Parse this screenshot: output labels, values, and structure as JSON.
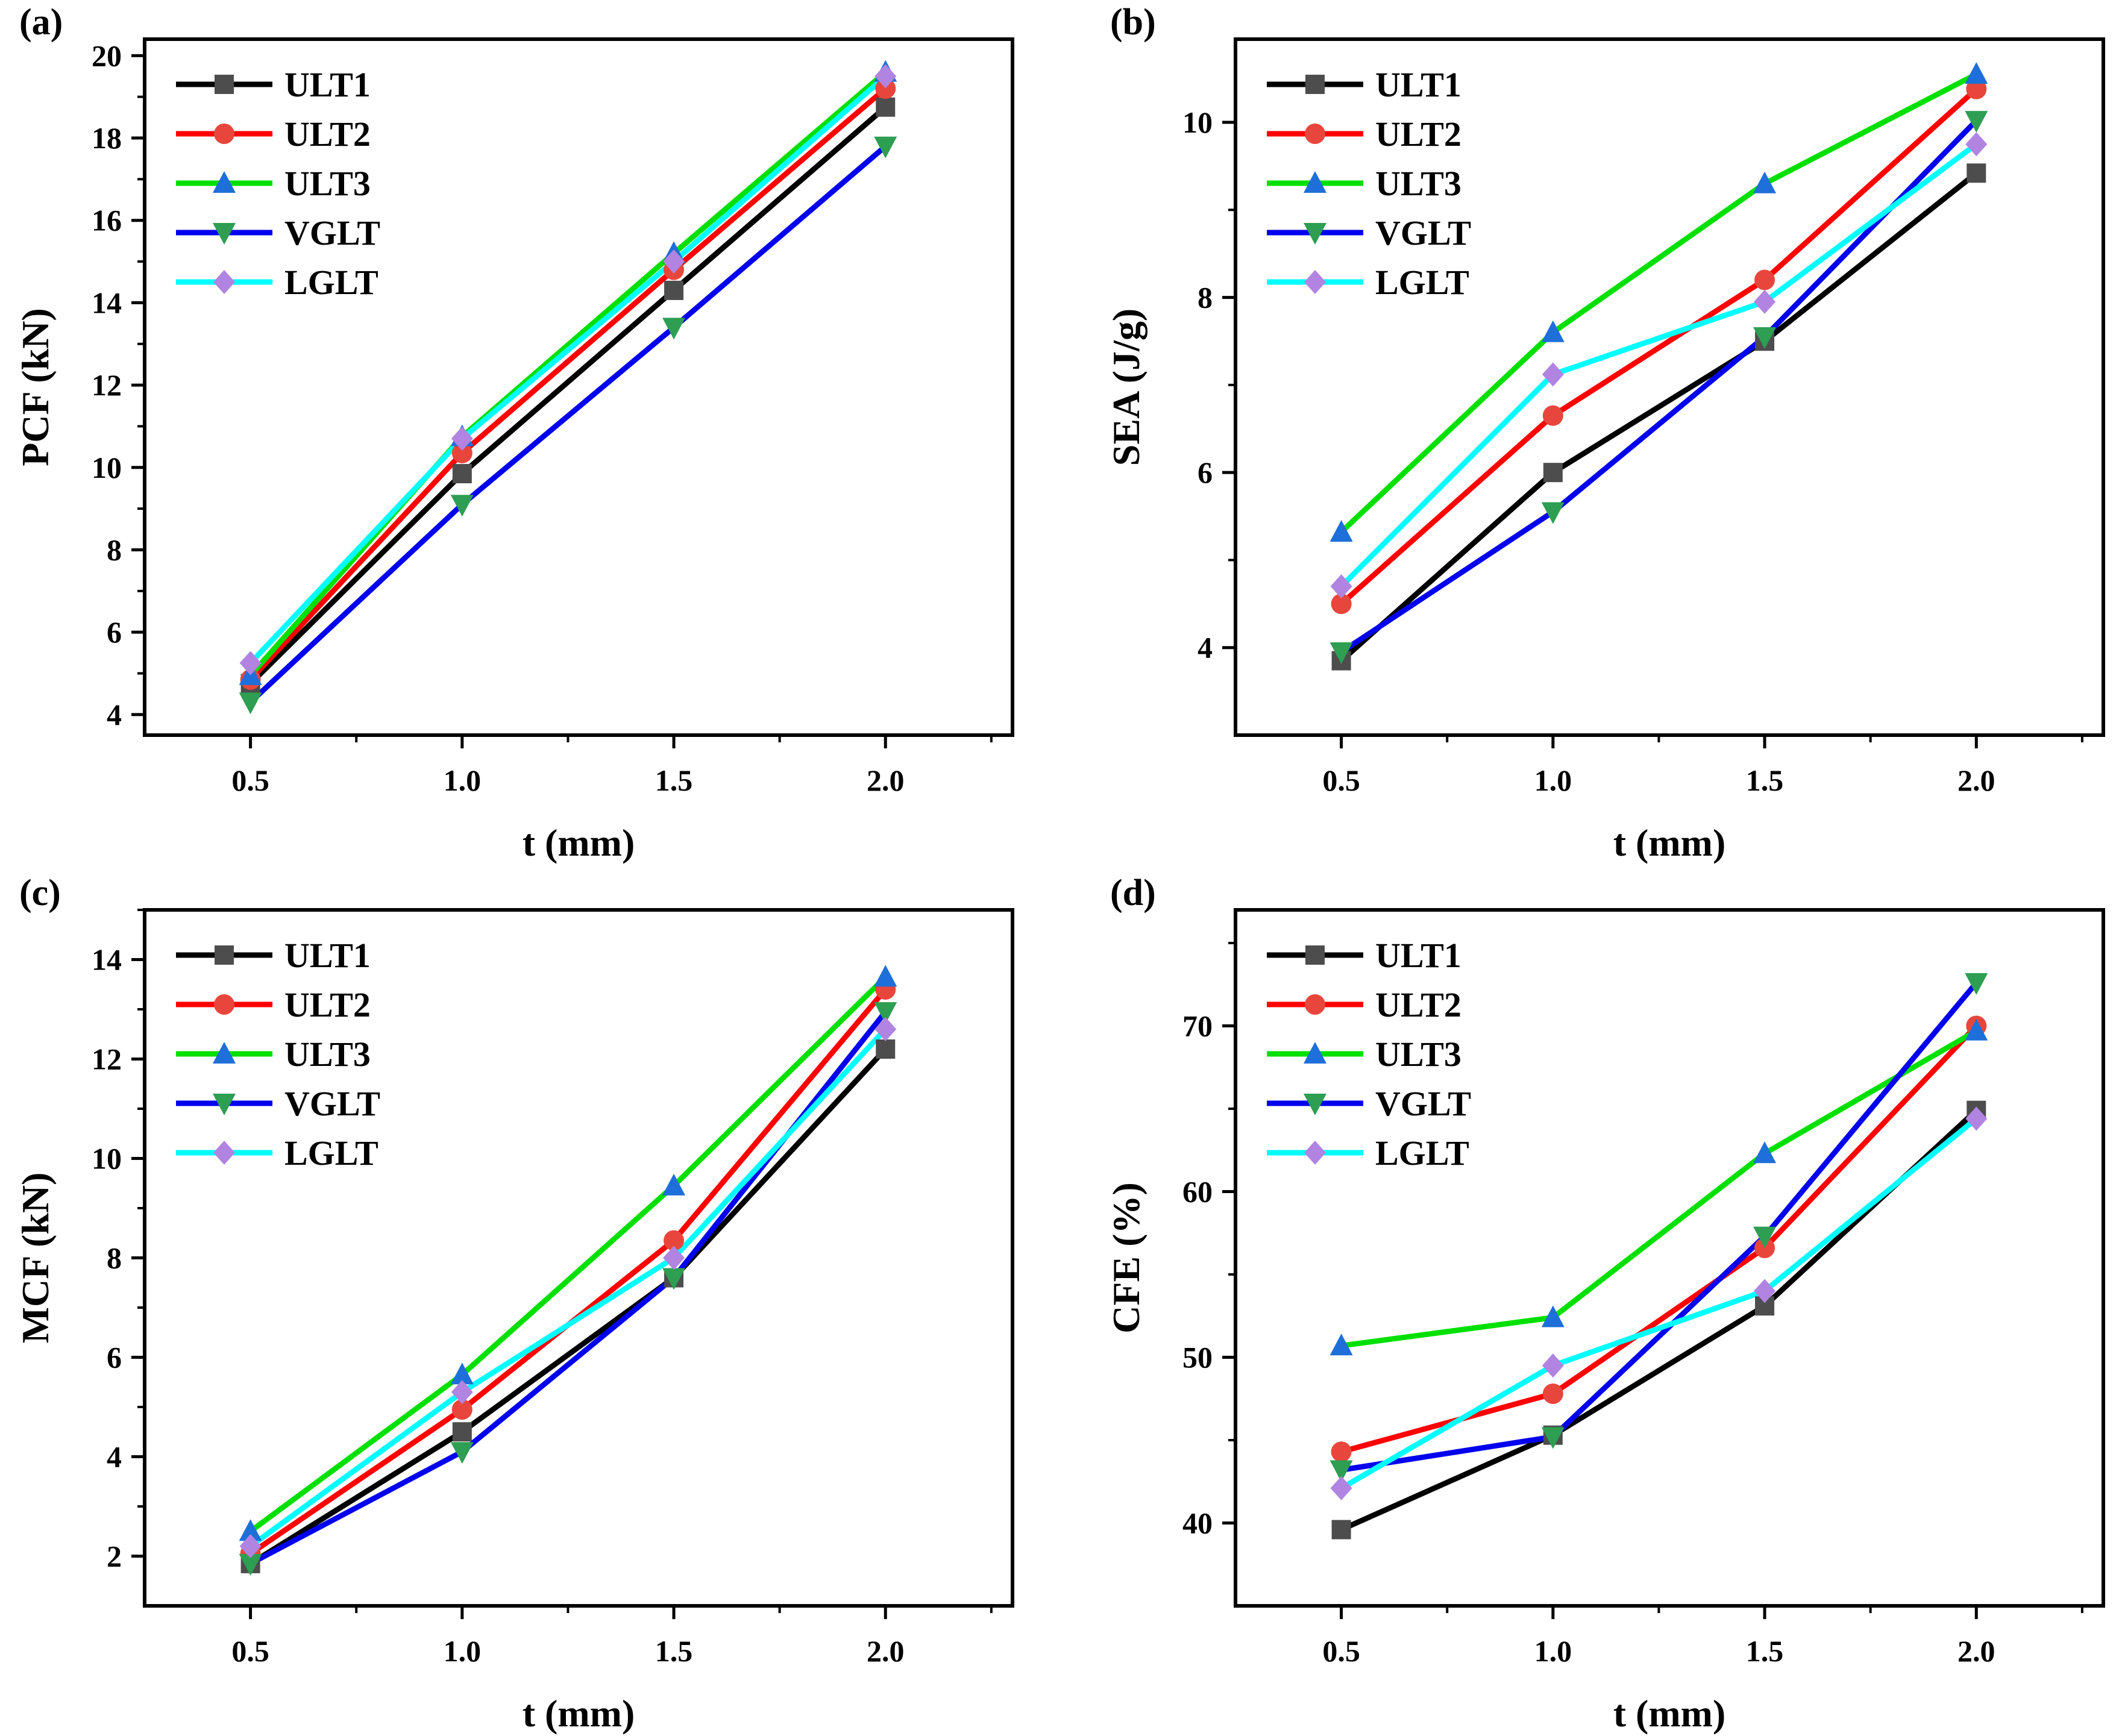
{
  "figure": {
    "series_style": [
      {
        "name": "ULT1",
        "line_color": "#000000",
        "marker_color": "#4d4d4d",
        "marker": "square"
      },
      {
        "name": "ULT2",
        "line_color": "#ff0000",
        "marker_color": "#e8463c",
        "marker": "circle"
      },
      {
        "name": "ULT3",
        "line_color": "#00e000",
        "marker_color": "#1e6fd9",
        "marker": "triangle-up"
      },
      {
        "name": "VGLT",
        "line_color": "#0000ee",
        "marker_color": "#2e9e52",
        "marker": "triangle-down"
      },
      {
        "name": "LGLT",
        "line_color": "#00ffff",
        "marker_color": "#b084e0",
        "marker": "diamond"
      }
    ]
  },
  "chart_data": [
    {
      "panel": "(a)",
      "type": "line",
      "xlabel": "t (mm)",
      "ylabel": "PCF (kN)",
      "x": [
        0.5,
        1.0,
        1.5,
        2.0
      ],
      "xticks": [
        "0.5",
        "1.0",
        "1.5",
        "2.0"
      ],
      "xlim": [
        0.25,
        2.3
      ],
      "yticks": [
        "4",
        "6",
        "8",
        "10",
        "12",
        "14",
        "16",
        "18",
        "20"
      ],
      "ylim": [
        3.5,
        20.4
      ],
      "legend": "top-left",
      "series": [
        {
          "name": "ULT1",
          "values": [
            4.75,
            9.85,
            14.3,
            18.75
          ]
        },
        {
          "name": "ULT2",
          "values": [
            4.85,
            10.35,
            14.8,
            19.2
          ]
        },
        {
          "name": "ULT3",
          "values": [
            4.95,
            10.75,
            15.2,
            19.6
          ]
        },
        {
          "name": "VGLT",
          "values": [
            4.3,
            9.1,
            13.4,
            17.8
          ]
        },
        {
          "name": "LGLT",
          "values": [
            5.25,
            10.7,
            15.0,
            19.5
          ]
        }
      ]
    },
    {
      "panel": "(b)",
      "type": "line",
      "xlabel": "t (mm)",
      "ylabel": "SEA (J/g)",
      "x": [
        0.5,
        1.0,
        1.5,
        2.0
      ],
      "xticks": [
        "0.5",
        "1.0",
        "1.5",
        "2.0"
      ],
      "xlim": [
        0.25,
        2.3
      ],
      "yticks": [
        "4",
        "6",
        "8",
        "10"
      ],
      "ylim": [
        3.0,
        10.95
      ],
      "legend": "top-left",
      "series": [
        {
          "name": "ULT1",
          "values": [
            3.85,
            6.0,
            7.5,
            9.42
          ]
        },
        {
          "name": "ULT2",
          "values": [
            4.5,
            6.65,
            8.2,
            10.38
          ]
        },
        {
          "name": "ULT3",
          "values": [
            5.32,
            7.6,
            9.3,
            10.55
          ]
        },
        {
          "name": "VGLT",
          "values": [
            3.95,
            5.55,
            7.55,
            10.02
          ]
        },
        {
          "name": "LGLT",
          "values": [
            4.7,
            7.12,
            7.95,
            9.75
          ]
        }
      ]
    },
    {
      "panel": "(c)",
      "type": "line",
      "xlabel": "t (mm)",
      "ylabel": "MCF (kN)",
      "x": [
        0.5,
        1.0,
        1.5,
        2.0
      ],
      "xticks": [
        "0.5",
        "1.0",
        "1.5",
        "2.0"
      ],
      "xlim": [
        0.25,
        2.3
      ],
      "yticks": [
        "2",
        "4",
        "6",
        "8",
        "10",
        "12",
        "14"
      ],
      "ylim": [
        1.0,
        15.0
      ],
      "legend": "top-left",
      "series": [
        {
          "name": "ULT1",
          "values": [
            1.85,
            4.5,
            7.6,
            12.2
          ]
        },
        {
          "name": "ULT2",
          "values": [
            2.05,
            4.95,
            8.35,
            13.4
          ]
        },
        {
          "name": "ULT3",
          "values": [
            2.5,
            5.65,
            9.45,
            13.65
          ]
        },
        {
          "name": "VGLT",
          "values": [
            1.85,
            4.1,
            7.6,
            12.95
          ]
        },
        {
          "name": "LGLT",
          "values": [
            2.2,
            5.3,
            8.0,
            12.6
          ]
        }
      ]
    },
    {
      "panel": "(d)",
      "type": "line",
      "xlabel": "t (mm)",
      "ylabel": "CFE (%)",
      "x": [
        0.5,
        1.0,
        1.5,
        2.0
      ],
      "xticks": [
        "0.5",
        "1.0",
        "1.5",
        "2.0"
      ],
      "xlim": [
        0.25,
        2.3
      ],
      "yticks": [
        "40",
        "50",
        "60",
        "70"
      ],
      "ylim": [
        35.0,
        77.0
      ],
      "legend": "top-left",
      "series": [
        {
          "name": "ULT1",
          "values": [
            39.6,
            45.3,
            53.1,
            64.9
          ]
        },
        {
          "name": "ULT2",
          "values": [
            44.3,
            47.8,
            56.6,
            70.0
          ]
        },
        {
          "name": "ULT3",
          "values": [
            50.7,
            52.4,
            62.3,
            69.7
          ]
        },
        {
          "name": "VGLT",
          "values": [
            43.2,
            45.2,
            57.3,
            72.6
          ]
        },
        {
          "name": "LGLT",
          "values": [
            42.1,
            49.5,
            54.0,
            64.4
          ]
        }
      ]
    }
  ]
}
